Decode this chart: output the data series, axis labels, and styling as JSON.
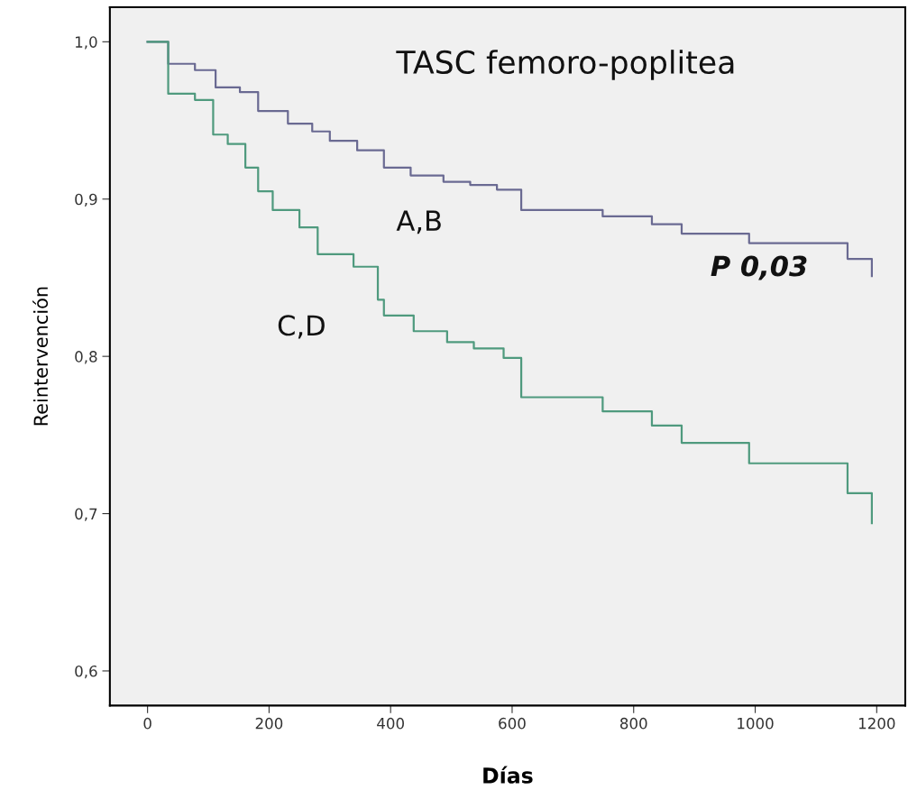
{
  "chart_data": {
    "type": "step",
    "xlabel": "Días",
    "ylabel": "Reintervención",
    "annotations": [
      "TASC femoro-poplitea",
      "P 0,03"
    ],
    "xlim": [
      -62,
      1247
    ],
    "xticks": [
      0,
      200,
      400,
      600,
      800,
      1000,
      1200
    ],
    "ylim": [
      0.578,
      1.022
    ],
    "yticks": [
      {
        "value": 0.6,
        "label": "0,6"
      },
      {
        "value": 0.7,
        "label": "0,7"
      },
      {
        "value": 0.8,
        "label": "0,8"
      },
      {
        "value": 0.9,
        "label": "0,9"
      },
      {
        "value": 1.0,
        "label": "1,0"
      }
    ],
    "grid": false,
    "legend": false,
    "series": [
      {
        "name": "A,B",
        "color": "#6a6a92",
        "x": [
          0,
          34,
          78,
          112,
          152,
          182,
          231,
          271,
          300,
          345,
          389,
          433,
          487,
          531,
          575,
          615,
          749,
          830,
          879,
          990,
          1152,
          1192
        ],
        "values": [
          1.0,
          0.986,
          0.982,
          0.971,
          0.968,
          0.956,
          0.948,
          0.943,
          0.937,
          0.931,
          0.92,
          0.915,
          0.911,
          0.909,
          0.906,
          0.893,
          0.889,
          0.884,
          0.878,
          0.872,
          0.862,
          0.851
        ]
      },
      {
        "name": "C,D",
        "color": "#4f9a7e",
        "x": [
          0,
          34,
          78,
          108,
          132,
          161,
          182,
          206,
          250,
          280,
          339,
          379,
          389,
          438,
          493,
          537,
          586,
          615,
          749,
          830,
          879,
          990,
          1152,
          1192
        ],
        "values": [
          1.0,
          0.967,
          0.963,
          0.941,
          0.935,
          0.92,
          0.905,
          0.893,
          0.882,
          0.865,
          0.857,
          0.836,
          0.826,
          0.816,
          0.809,
          0.805,
          0.799,
          0.774,
          0.765,
          0.756,
          0.745,
          0.732,
          0.713,
          0.694
        ]
      }
    ]
  }
}
